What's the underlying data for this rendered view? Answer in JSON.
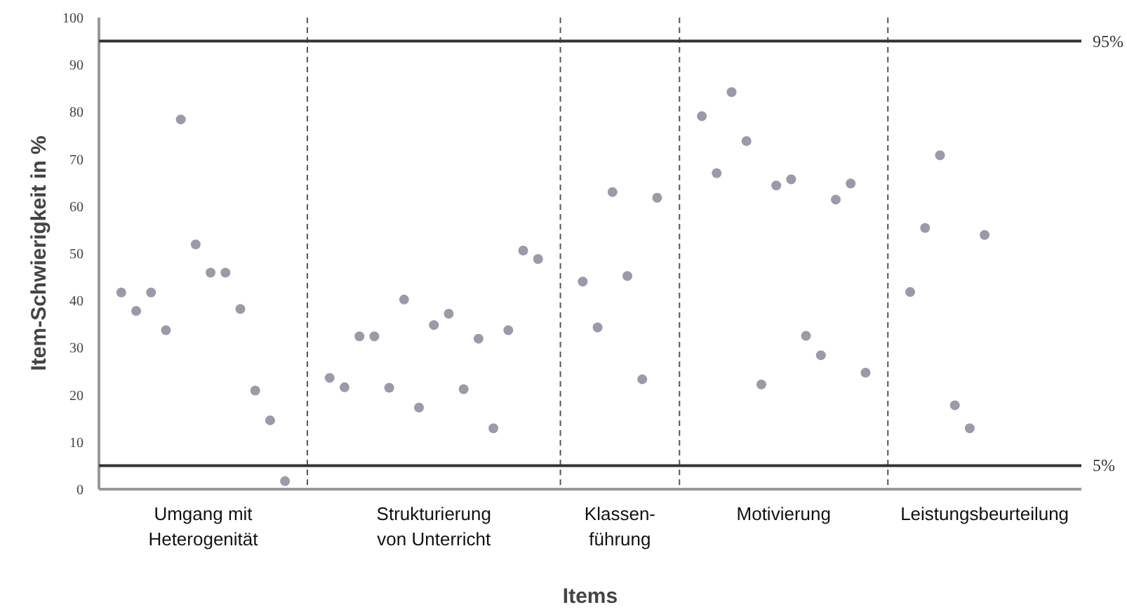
{
  "chart_data": {
    "type": "scatter",
    "xlabel": "Items",
    "ylabel": "Item-Schwierigkeit in %",
    "categories": [
      null,
      null,
      null,
      null,
      null,
      null,
      null,
      null,
      null,
      null,
      null,
      null,
      null,
      null,
      null,
      null,
      null,
      null,
      null,
      null,
      null,
      null,
      null,
      null,
      null,
      null,
      null,
      null,
      null,
      null,
      null,
      null,
      null,
      null,
      null,
      null,
      null,
      null,
      null,
      null,
      null,
      null,
      null,
      null,
      null,
      null,
      null,
      null,
      null,
      null,
      null,
      null,
      null,
      null,
      null,
      null,
      null,
      null,
      null,
      null,
      null,
      null,
      null,
      null,
      null,
      null
    ],
    "values": [
      null,
      41.7,
      37.8,
      41.7,
      33.7,
      78.4,
      51.9,
      45.9,
      45.9,
      38.2,
      20.9,
      14.6,
      1.7,
      null,
      null,
      23.6,
      21.6,
      32.4,
      32.4,
      21.5,
      40.2,
      17.3,
      34.8,
      37.2,
      21.2,
      31.9,
      12.9,
      33.7,
      50.6,
      48.8,
      null,
      null,
      44.0,
      34.3,
      63.0,
      45.2,
      23.3,
      61.8,
      null,
      null,
      79.1,
      67.0,
      84.2,
      73.8,
      22.2,
      64.4,
      65.7,
      32.5,
      28.4,
      61.4,
      64.8,
      24.7,
      null,
      null,
      41.8,
      55.4,
      70.8,
      17.8,
      12.9,
      53.9,
      null,
      null,
      null,
      null,
      null,
      null
    ],
    "color": "#9a9aa8",
    "marker": "circle",
    "annotations": [
      "Umgang mit\nHeterogenität",
      "Strukturierung\nvon Unterricht",
      "Klassen-\nführung",
      "Motivierung",
      "Leistungsbeurteilung"
    ],
    "ylim": [
      0,
      100
    ],
    "yticks": [
      0,
      10,
      20,
      30,
      40,
      50,
      60,
      70,
      80,
      90,
      100
    ],
    "grid": false,
    "ref_lines": [
      {
        "axis": "y",
        "value": 95,
        "label": "95%",
        "color": "#333333",
        "line_style": "solid"
      },
      {
        "axis": "y",
        "value": 5,
        "label": "5%",
        "color": "#333333",
        "line_style": "solid"
      }
    ]
  }
}
